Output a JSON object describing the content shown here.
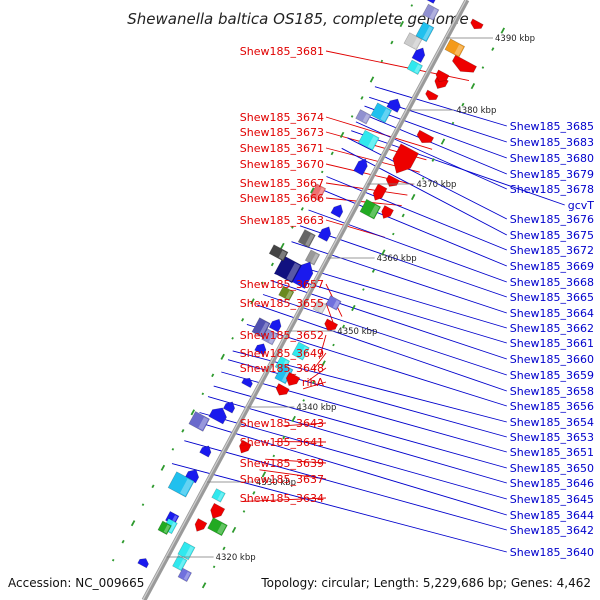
{
  "title": "Shewanella baltica OS185, complete genome",
  "footer": {
    "accession": "Accession: NC_009665",
    "topology": "Topology: circular; Length: 5,229,686 bp; Genes: 4,462"
  },
  "colors": {
    "left_label": "#e00000",
    "right_label": "#0000cc",
    "axis": "#9a9a9a",
    "tick": "#2e9a2e"
  },
  "scale_marks": [
    "4390 kbp",
    "4380 kbp",
    "4370 kbp",
    "4360 kbp",
    "4350 kbp",
    "4340 kbp",
    "4330 kbp",
    "4320 kbp"
  ],
  "left_labels": [
    "Shew185_3681",
    "Shew185_3674",
    "Shew185_3673",
    "Shew185_3671",
    "Shew185_3670",
    "Shew185_3667",
    "Shew185_3666",
    "Shew185_3663",
    "Shew185_3657",
    "Shew185_3655",
    "Shew185_3652",
    "Shew185_3649",
    "Shew185_3648",
    "rihA",
    "Shew185_3643",
    "Shew185_3641",
    "Shew185_3639",
    "Shew185_3637",
    "Shew185_3634"
  ],
  "right_labels": [
    "Shew185_3685",
    "Shew185_3683",
    "Shew185_3680",
    "Shew185_3679",
    "Shew185_3678",
    "gcvT",
    "Shew185_3676",
    "Shew185_3675",
    "Shew185_3672",
    "Shew185_3669",
    "Shew185_3668",
    "Shew185_3665",
    "Shew185_3664",
    "Shew185_3662",
    "Shew185_3661",
    "Shew185_3660",
    "Shew185_3659",
    "Shew185_3658",
    "Shew185_3656",
    "Shew185_3654",
    "Shew185_3653",
    "Shew185_3651",
    "Shew185_3650",
    "Shew185_3646",
    "Shew185_3645",
    "Shew185_3644",
    "Shew185_3642",
    "Shew185_3640"
  ]
}
